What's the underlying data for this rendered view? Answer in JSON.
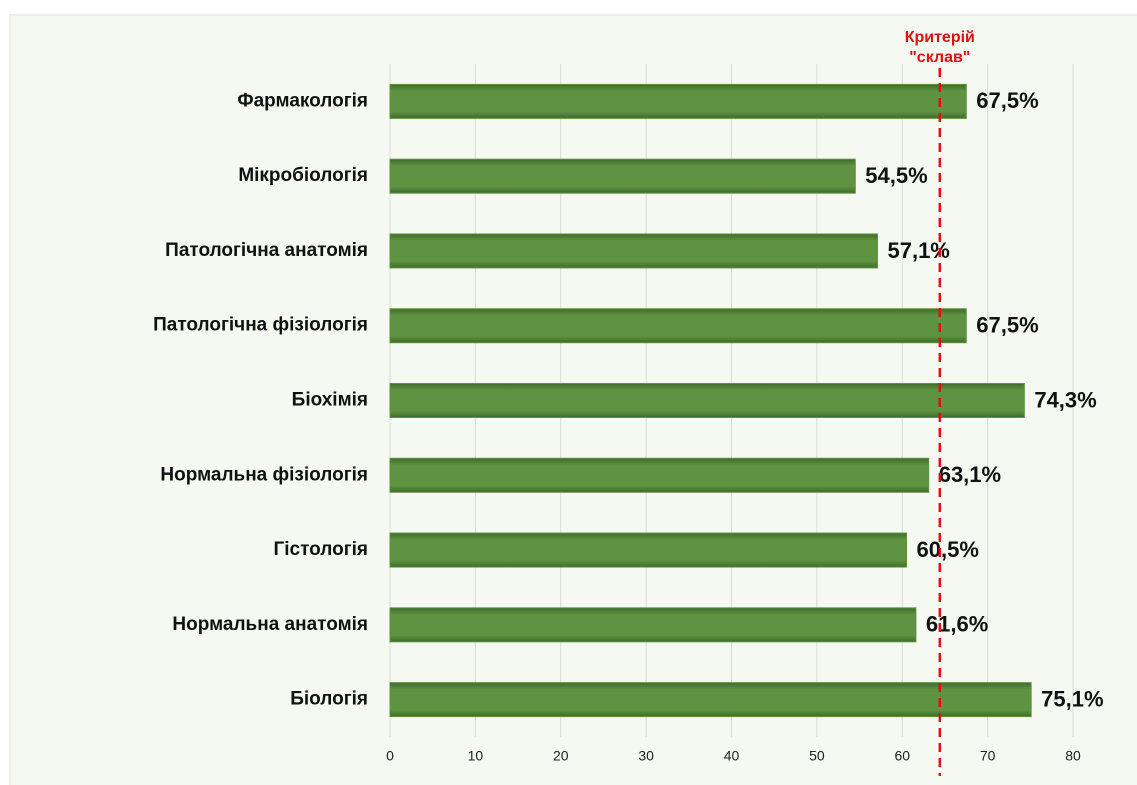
{
  "chart_data": {
    "type": "hbar",
    "categories": [
      "Фармакологія",
      "Мікробіологія",
      "Патологічна анатомія",
      "Патологічна фізіологія",
      "Біохімія",
      "Нормальна фізіологія",
      "Гістологія",
      "Нормальна анатомія",
      "Біологія"
    ],
    "values": [
      67.5,
      54.5,
      57.1,
      67.5,
      74.3,
      63.1,
      60.5,
      61.6,
      75.1
    ],
    "value_labels": [
      "67,5%",
      "54,5%",
      "57,1%",
      "67,5%",
      "74,3%",
      "63,1%",
      "60,5%",
      "61,6%",
      "75,1%"
    ],
    "color": "#5e9441",
    "xlim": [
      0,
      80
    ],
    "xticks": [
      0,
      10,
      20,
      30,
      40,
      50,
      60,
      70,
      80
    ],
    "grid": true,
    "reference_line": {
      "value": 64.4,
      "color": "#e01010",
      "label_lines": [
        "Критерій",
        "\"склав\""
      ]
    }
  }
}
